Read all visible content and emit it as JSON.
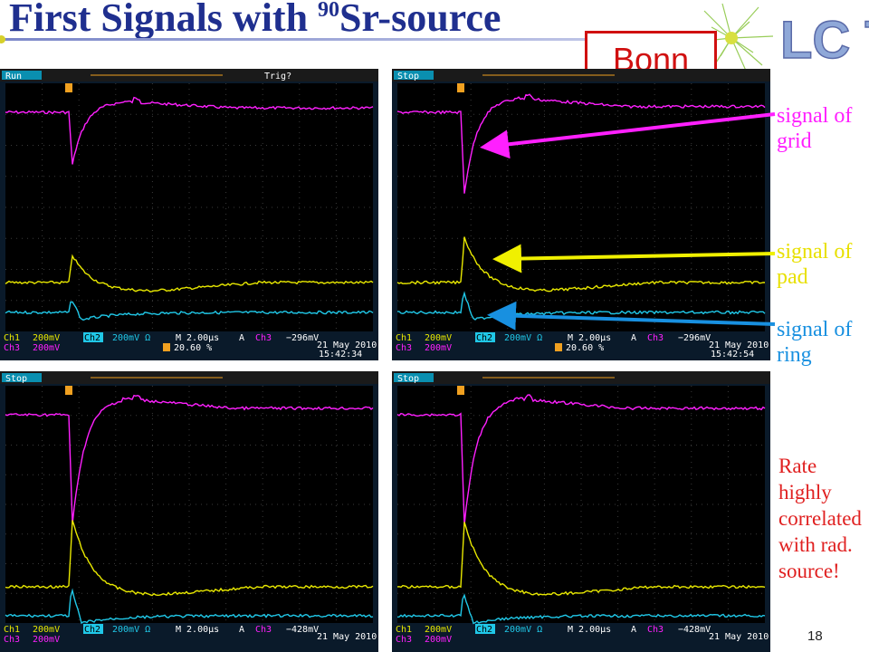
{
  "title": {
    "prefix": "First Signals with ",
    "sup": "90",
    "suffix": "Sr-source"
  },
  "logo": {
    "letters": "LC TPC"
  },
  "badge": "Bonn",
  "scopes": [
    {
      "state": "Run",
      "trig": "Trig?",
      "ch1": "Ch1",
      "ch1_scale": "200mV",
      "ch2": "Ch2",
      "ch2_scale": "200mV Ω",
      "time": "M 2.00µs",
      "trig_ch": "A",
      "ch3": "Ch3",
      "trig_level": "−296mV",
      "ch3_label": "Ch3",
      "ch3_scale": "200mV",
      "pct": "20.60 %",
      "date": "21 May 2010",
      "clock": "15:42:34"
    },
    {
      "state": "Stop",
      "trig": "",
      "ch1": "Ch1",
      "ch1_scale": "200mV",
      "ch2": "Ch2",
      "ch2_scale": "200mV Ω",
      "time": "M 2.00µs",
      "trig_ch": "A",
      "ch3": "Ch3",
      "trig_level": "−296mV",
      "ch3_label": "Ch3",
      "ch3_scale": "200mV",
      "pct": "20.60 %",
      "date": "21 May 2010",
      "clock": "15:42:54"
    },
    {
      "state": "Stop",
      "trig": "",
      "ch1": "Ch1",
      "ch1_scale": "200mV",
      "ch2": "Ch2",
      "ch2_scale": "200mV Ω",
      "time": "M 2.00µs",
      "trig_ch": "A",
      "ch3": "Ch3",
      "trig_level": "−428mV",
      "ch3_label": "Ch3",
      "ch3_scale": "200mV",
      "pct": "",
      "date": "21 May 2010",
      "clock": ""
    },
    {
      "state": "Stop",
      "trig": "",
      "ch1": "Ch1",
      "ch1_scale": "200mV",
      "ch2": "Ch2",
      "ch2_scale": "200mV Ω",
      "time": "M 2.00µs",
      "trig_ch": "A",
      "ch3": "Ch3",
      "trig_level": "−428mV",
      "ch3_label": "Ch3",
      "ch3_scale": "200mV",
      "pct": "",
      "date": "21 May 2010",
      "clock": ""
    }
  ],
  "annotations": {
    "grid": [
      "signal of",
      "grid"
    ],
    "pad": [
      "signal of",
      "pad"
    ],
    "ring": [
      "signal of",
      "ring"
    ],
    "rate": [
      "Rate",
      "highly",
      "correlated",
      "with rad.",
      "source!"
    ]
  },
  "colors": {
    "grid": "#ff20ff",
    "pad": "#e8e800",
    "ring": "#20c8e8",
    "title": "#1f2f8f",
    "rate": "#e02020",
    "arrow_grid": "#ff20ff",
    "arrow_pad": "#e8e800",
    "arrow_ring": "#1890e0"
  },
  "page_number": "18"
}
